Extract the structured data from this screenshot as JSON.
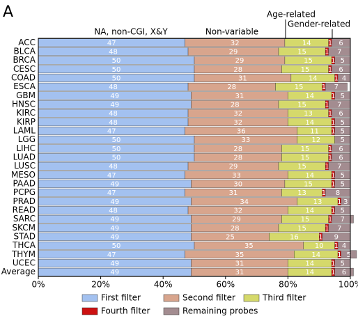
{
  "chart_data": {
    "type": "stacked-barh",
    "panel_label": "A",
    "annotations": [
      "NA, non-CGI, X&Y",
      "Non-variable",
      "Age-related",
      "Gender-related"
    ],
    "categories": [
      "ACC",
      "BLCA",
      "BRCA",
      "CESC",
      "COAD",
      "ESCA",
      "GBM",
      "HNSC",
      "KIRC",
      "KIRP",
      "LAML",
      "LGG",
      "LIHC",
      "LUAD",
      "LUSC",
      "MESO",
      "PAAD",
      "PCPG",
      "PRAD",
      "READ",
      "SARC",
      "SKCM",
      "STAD",
      "THCA",
      "THYM",
      "UCEC",
      "Average"
    ],
    "series": [
      {
        "name": "First filter",
        "color": "#a3c1f0",
        "values": [
          47,
          48,
          50,
          50,
          50,
          48,
          49,
          49,
          48,
          48,
          47,
          50,
          50,
          50,
          48,
          47,
          49,
          47,
          49,
          48,
          49,
          49,
          49,
          50,
          47,
          49,
          49
        ]
      },
      {
        "name": "Second filter",
        "color": "#d8a58d",
        "values": [
          32,
          29,
          29,
          28,
          31,
          28,
          31,
          28,
          32,
          32,
          36,
          33,
          28,
          28,
          29,
          33,
          30,
          31,
          34,
          32,
          29,
          28,
          25,
          35,
          35,
          31,
          31
        ]
      },
      {
        "name": "Third filter",
        "color": "#d5d96b",
        "values": [
          14,
          15,
          15,
          15,
          14,
          15,
          14,
          15,
          13,
          14,
          11,
          12,
          15,
          15,
          15,
          14,
          15,
          13,
          13,
          14,
          15,
          15,
          16,
          10,
          14,
          14,
          14
        ]
      },
      {
        "name": "Fourth filter",
        "color": "#cc1111",
        "values": [
          1,
          1,
          1,
          1,
          1,
          1,
          1,
          1,
          1,
          1,
          1,
          0,
          1,
          1,
          1,
          1,
          1,
          1,
          1,
          1,
          1,
          1,
          1,
          1,
          1,
          1,
          1
        ]
      },
      {
        "name": "Remaining probes",
        "color": "#a38c90",
        "values": [
          6,
          7,
          5,
          6,
          4,
          7,
          5,
          7,
          6,
          5,
          5,
          5,
          6,
          6,
          7,
          5,
          5,
          8,
          3,
          5,
          7,
          7,
          9,
          4,
          5,
          5,
          6
        ]
      }
    ],
    "xlim": [
      0,
      100
    ],
    "xticks": [
      {
        "value": 0,
        "label": "0%"
      },
      {
        "value": 20,
        "label": "20%"
      },
      {
        "value": 40,
        "label": "40%"
      },
      {
        "value": 60,
        "label": "60%"
      },
      {
        "value": 80,
        "label": "80%"
      },
      {
        "value": 100,
        "label": "100%"
      }
    ]
  }
}
